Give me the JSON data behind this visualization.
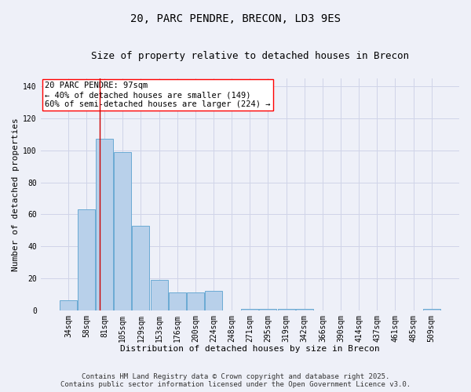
{
  "title_line1": "20, PARC PENDRE, BRECON, LD3 9ES",
  "title_line2": "Size of property relative to detached houses in Brecon",
  "xlabel": "Distribution of detached houses by size in Brecon",
  "ylabel": "Number of detached properties",
  "categories": [
    "34sqm",
    "58sqm",
    "81sqm",
    "105sqm",
    "129sqm",
    "153sqm",
    "176sqm",
    "200sqm",
    "224sqm",
    "248sqm",
    "271sqm",
    "295sqm",
    "319sqm",
    "342sqm",
    "366sqm",
    "390sqm",
    "414sqm",
    "437sqm",
    "461sqm",
    "485sqm",
    "509sqm"
  ],
  "values": [
    6,
    63,
    107,
    99,
    53,
    19,
    11,
    11,
    12,
    0,
    1,
    1,
    1,
    1,
    0,
    0,
    0,
    0,
    0,
    0,
    1
  ],
  "bar_color": "#b8d0ea",
  "bar_edge_color": "#6aaad4",
  "grid_color": "#d0d4e8",
  "background_color": "#eef0f8",
  "red_line_x": 1.75,
  "ylim": [
    0,
    145
  ],
  "yticks": [
    0,
    20,
    40,
    60,
    80,
    100,
    120,
    140
  ],
  "annotation_text_line1": "20 PARC PENDRE: 97sqm",
  "annotation_text_line2": "← 40% of detached houses are smaller (149)",
  "annotation_text_line3": "60% of semi-detached houses are larger (224) →",
  "footer_line1": "Contains HM Land Registry data © Crown copyright and database right 2025.",
  "footer_line2": "Contains public sector information licensed under the Open Government Licence v3.0.",
  "title_fontsize": 10,
  "subtitle_fontsize": 9,
  "axis_label_fontsize": 8,
  "tick_fontsize": 7,
  "annotation_fontsize": 7.5,
  "footer_fontsize": 6.5
}
